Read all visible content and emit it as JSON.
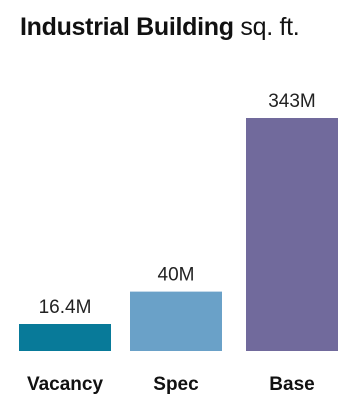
{
  "chart_data": {
    "type": "bar",
    "title": "Industrial Building",
    "title_unit": "sq. ft.",
    "categories": [
      "Vacancy",
      "Spec",
      "Base"
    ],
    "values": [
      16.4,
      40,
      343
    ],
    "value_labels": [
      "16.4M",
      "40M",
      "343M"
    ],
    "colors": [
      "#087a99",
      "#6aa1c8",
      "#716a9c"
    ],
    "grid": false,
    "legend": "none"
  }
}
